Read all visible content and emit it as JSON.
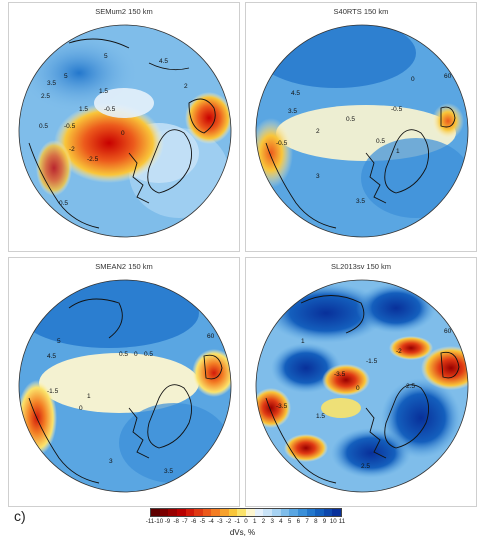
{
  "panels": [
    {
      "title": "SEMum2 150 km",
      "labels": [
        "3.5",
        "5",
        "2.5",
        "0.5",
        "0",
        "1.5",
        "-0.5",
        "-2.5",
        "-2",
        "-0.5",
        "0.5",
        "2",
        "5",
        "1.5",
        "4.5"
      ]
    },
    {
      "title": "S40RTS 150 km",
      "labels": [
        "4.5",
        "60",
        "3.5",
        "2",
        "0.5",
        "-0.5",
        "0",
        "-0.5",
        "0.5",
        "1",
        "3",
        "3.5"
      ]
    },
    {
      "title": "SMEAN2 150 km",
      "labels": [
        "5",
        "4.5",
        "60",
        "0.5",
        "0",
        "0.5",
        "-1.5",
        "1",
        "0",
        "3",
        "3.5"
      ]
    },
    {
      "title": "SL2013sv 150 km",
      "labels": [
        "60",
        "-3.5",
        "-1.5",
        "1",
        "-2",
        "-3.5",
        "0",
        "2.5",
        "1.5",
        "2.5"
      ]
    }
  ],
  "part_label": "c)",
  "colorbar": {
    "title": "dVs, %",
    "ticks": [
      "-11",
      "-10",
      "-9",
      "-8",
      "-7",
      "-6",
      "-5",
      "-4",
      "-3",
      "-2",
      "-1",
      "0",
      "1",
      "2",
      "3",
      "4",
      "5",
      "6",
      "7",
      "8",
      "9",
      "10",
      "11"
    ],
    "colors": [
      "#5e0000",
      "#7a0000",
      "#990000",
      "#b80000",
      "#d21a0a",
      "#e03a14",
      "#ec5a1c",
      "#f37d24",
      "#f7a12c",
      "#f9c63a",
      "#fbe36a",
      "#fdf6d0",
      "#e6f1fb",
      "#c9e3f7",
      "#a6d2f2",
      "#7fbdea",
      "#5aa6e2",
      "#3a8fd8",
      "#2377cc",
      "#145fbd",
      "#0d47ac",
      "#08309a"
    ]
  }
}
